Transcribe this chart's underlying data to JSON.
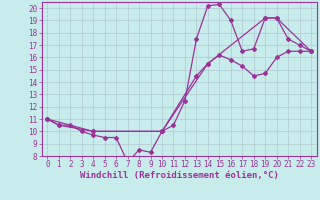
{
  "xlabel": "Windchill (Refroidissement éolien,°C)",
  "bg_color": "#c8ecec",
  "line_color": "#993399",
  "xlim": [
    -0.5,
    23.5
  ],
  "ylim": [
    8,
    20.5
  ],
  "xticks": [
    0,
    1,
    2,
    3,
    4,
    5,
    6,
    7,
    8,
    9,
    10,
    11,
    12,
    13,
    14,
    15,
    16,
    17,
    18,
    19,
    20,
    21,
    22,
    23
  ],
  "yticks": [
    8,
    9,
    10,
    11,
    12,
    13,
    14,
    15,
    16,
    17,
    18,
    19,
    20
  ],
  "curve1_x": [
    0,
    1,
    2,
    3,
    4,
    5,
    6,
    7,
    8,
    9,
    10,
    11,
    12,
    13,
    14,
    15,
    16,
    17,
    18,
    19,
    20,
    21,
    22,
    23
  ],
  "curve1_y": [
    11,
    10.5,
    10.5,
    10,
    9.7,
    9.5,
    9.5,
    7.5,
    8.5,
    8.3,
    10,
    10.5,
    12.5,
    17.5,
    20.2,
    20.3,
    19.0,
    16.5,
    16.7,
    19.2,
    19.2,
    17.5,
    17.0,
    16.5
  ],
  "curve2_x": [
    0,
    1,
    4,
    10,
    14,
    15,
    16,
    17,
    18,
    19,
    20,
    21,
    22,
    23
  ],
  "curve2_y": [
    11,
    10.5,
    10,
    10,
    15.5,
    16.2,
    15.8,
    15.3,
    14.5,
    14.7,
    16.0,
    16.5,
    16.5,
    16.5
  ],
  "curve3_x": [
    0,
    4,
    10,
    13,
    14,
    19,
    20,
    23
  ],
  "curve3_y": [
    11,
    10,
    10,
    14.5,
    15.5,
    19.2,
    19.2,
    16.5
  ],
  "grid_color": "#b0c8d0",
  "tick_fontsize": 5.5,
  "xlabel_fontsize": 6.5
}
